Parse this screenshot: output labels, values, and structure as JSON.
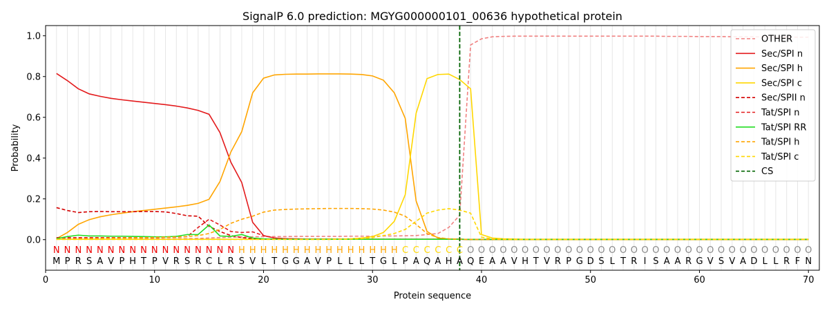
{
  "chart_data": {
    "type": "line",
    "title": "SignalP 6.0 prediction: MGYG000000101_00636 hypothetical protein",
    "xlabel": "Protein sequence",
    "ylabel": "Probability",
    "xlim": [
      0,
      71
    ],
    "ylim": [
      -0.15,
      1.05
    ],
    "xticks": [
      0,
      10,
      20,
      30,
      40,
      50,
      60,
      70
    ],
    "yticks": [
      0.0,
      0.2,
      0.4,
      0.6,
      0.8,
      1.0
    ],
    "legend_position": "top-right",
    "cleavage_site": 38,
    "sequence": [
      "M",
      "P",
      "R",
      "S",
      "A",
      "V",
      "P",
      "H",
      "T",
      "P",
      "V",
      "R",
      "S",
      "R",
      "C",
      "L",
      "R",
      "S",
      "V",
      "L",
      "T",
      "G",
      "G",
      "A",
      "V",
      "P",
      "L",
      "L",
      "L",
      "T",
      "G",
      "L",
      "P",
      "A",
      "Q",
      "A",
      "H",
      "A",
      "Q",
      "E",
      "A",
      "A",
      "V",
      "H",
      "T",
      "V",
      "R",
      "P",
      "G",
      "D",
      "S",
      "L",
      "T",
      "R",
      "I",
      "S",
      "A",
      "A",
      "R",
      "G",
      "V",
      "S",
      "V",
      "A",
      "D",
      "L",
      "L",
      "R",
      "F",
      "N"
    ],
    "labels": [
      "N",
      "N",
      "N",
      "N",
      "N",
      "N",
      "N",
      "N",
      "N",
      "N",
      "N",
      "N",
      "N",
      "N",
      "N",
      "N",
      "N",
      "H",
      "H",
      "H",
      "H",
      "H",
      "H",
      "H",
      "H",
      "H",
      "H",
      "H",
      "H",
      "H",
      "H",
      "H",
      "C",
      "C",
      "C",
      "C",
      "C",
      "C",
      "O",
      "O",
      "O",
      "O",
      "O",
      "O",
      "O",
      "O",
      "O",
      "O",
      "O",
      "O",
      "O",
      "O",
      "O",
      "O",
      "O",
      "O",
      "O",
      "O",
      "O",
      "O",
      "O",
      "O",
      "O",
      "O",
      "O",
      "O",
      "O",
      "O",
      "O",
      "O"
    ],
    "label_colors": {
      "N": "#ee0000",
      "H": "#ffa500",
      "C": "#ffd700",
      "O": "#888888"
    },
    "series": [
      {
        "name": "OTHER",
        "color": "#f08080",
        "dash": "dashed",
        "values": [
          0.005,
          0.005,
          0.005,
          0.005,
          0.005,
          0.005,
          0.005,
          0.005,
          0.005,
          0.005,
          0.005,
          0.005,
          0.005,
          0.006,
          0.008,
          0.01,
          0.012,
          0.013,
          0.014,
          0.015,
          0.015,
          0.015,
          0.016,
          0.016,
          0.016,
          0.016,
          0.016,
          0.017,
          0.017,
          0.017,
          0.018,
          0.018,
          0.019,
          0.02,
          0.025,
          0.03,
          0.06,
          0.12,
          0.955,
          0.985,
          0.995,
          0.997,
          0.998,
          0.998,
          0.998,
          0.998,
          0.998,
          0.998,
          0.998,
          0.998,
          0.998,
          0.998,
          0.998,
          0.998,
          0.998,
          0.998,
          0.997,
          0.997,
          0.997,
          0.996,
          0.996,
          0.996,
          0.995,
          0.995,
          0.995,
          0.994,
          0.994,
          0.994,
          0.993,
          0.993
        ]
      },
      {
        "name": "Sec/SPI n",
        "color": "#e31a1c",
        "dash": "solid",
        "values": [
          0.815,
          0.78,
          0.74,
          0.715,
          0.703,
          0.693,
          0.686,
          0.68,
          0.674,
          0.668,
          0.662,
          0.655,
          0.646,
          0.634,
          0.615,
          0.525,
          0.38,
          0.28,
          0.085,
          0.02,
          0.008,
          0.005,
          0.004,
          0.003,
          0.003,
          0.003,
          0.002,
          0.002,
          0.002,
          0.002,
          0.002,
          0.002,
          0.002,
          0.002,
          0.002,
          0.002,
          0.002,
          0.002,
          0.001,
          0.001,
          0.001,
          0.001,
          0.001,
          0.001,
          0.001,
          0.001,
          0.001,
          0.001,
          0.001,
          0.001,
          0.001,
          0.001,
          0.001,
          0.001,
          0.001,
          0.001,
          0.001,
          0.001,
          0.001,
          0.001,
          0.001,
          0.001,
          0.001,
          0.001,
          0.001,
          0.001,
          0.001,
          0.001,
          0.001,
          0.001
        ]
      },
      {
        "name": "Sec/SPI h",
        "color": "#ffa500",
        "dash": "solid",
        "values": [
          0.005,
          0.035,
          0.075,
          0.098,
          0.112,
          0.122,
          0.13,
          0.137,
          0.143,
          0.149,
          0.155,
          0.161,
          0.168,
          0.178,
          0.198,
          0.285,
          0.43,
          0.53,
          0.72,
          0.792,
          0.808,
          0.811,
          0.812,
          0.812,
          0.813,
          0.813,
          0.813,
          0.812,
          0.81,
          0.803,
          0.782,
          0.72,
          0.595,
          0.19,
          0.04,
          0.008,
          0.003,
          0.002,
          0.001,
          0.001,
          0.001,
          0.001,
          0.001,
          0.001,
          0.001,
          0.001,
          0.001,
          0.001,
          0.001,
          0.001,
          0.001,
          0.001,
          0.001,
          0.001,
          0.001,
          0.001,
          0.001,
          0.001,
          0.001,
          0.001,
          0.001,
          0.001,
          0.001,
          0.001,
          0.001,
          0.001,
          0.001,
          0.001,
          0.001,
          0.001
        ]
      },
      {
        "name": "Sec/SPI c",
        "color": "#ffd700",
        "dash": "solid",
        "values": [
          0.002,
          0.002,
          0.002,
          0.002,
          0.002,
          0.002,
          0.002,
          0.002,
          0.002,
          0.002,
          0.002,
          0.002,
          0.002,
          0.002,
          0.002,
          0.002,
          0.002,
          0.002,
          0.002,
          0.002,
          0.002,
          0.002,
          0.002,
          0.002,
          0.002,
          0.003,
          0.003,
          0.004,
          0.008,
          0.015,
          0.035,
          0.09,
          0.22,
          0.62,
          0.79,
          0.81,
          0.812,
          0.785,
          0.74,
          0.025,
          0.008,
          0.004,
          0.003,
          0.002,
          0.002,
          0.002,
          0.002,
          0.002,
          0.002,
          0.002,
          0.002,
          0.002,
          0.002,
          0.002,
          0.002,
          0.002,
          0.002,
          0.002,
          0.002,
          0.002,
          0.002,
          0.002,
          0.002,
          0.002,
          0.002,
          0.002,
          0.002,
          0.002,
          0.002,
          0.002
        ]
      },
      {
        "name": "Sec/SPII n",
        "color": "#d40000",
        "dash": "dashed",
        "values": [
          0.157,
          0.143,
          0.133,
          0.137,
          0.138,
          0.137,
          0.137,
          0.137,
          0.138,
          0.138,
          0.136,
          0.128,
          0.117,
          0.115,
          0.065,
          0.04,
          0.02,
          0.01,
          0.005,
          0.003,
          0.002,
          0.002,
          0.002,
          0.002,
          0.002,
          0.002,
          0.002,
          0.002,
          0.002,
          0.002,
          0.002,
          0.002,
          0.002,
          0.002,
          0.002,
          0.002,
          0.002,
          0.002,
          0.001,
          0.001,
          0.001,
          0.001,
          0.001,
          0.001,
          0.001,
          0.001,
          0.001,
          0.001,
          0.001,
          0.001,
          0.001,
          0.001,
          0.001,
          0.001,
          0.001,
          0.001,
          0.001,
          0.001,
          0.001,
          0.001,
          0.001,
          0.001,
          0.001,
          0.001,
          0.001,
          0.001,
          0.001,
          0.001,
          0.001,
          0.001
        ]
      },
      {
        "name": "Tat/SPI n",
        "color": "#e31a1c",
        "dash": "dashed",
        "values": [
          0.01,
          0.01,
          0.01,
          0.01,
          0.01,
          0.01,
          0.01,
          0.01,
          0.01,
          0.01,
          0.012,
          0.012,
          0.015,
          0.06,
          0.1,
          0.072,
          0.04,
          0.035,
          0.038,
          0.02,
          0.008,
          0.005,
          0.003,
          0.002,
          0.002,
          0.002,
          0.002,
          0.002,
          0.002,
          0.002,
          0.002,
          0.002,
          0.002,
          0.002,
          0.002,
          0.002,
          0.002,
          0.002,
          0.001,
          0.001,
          0.001,
          0.001,
          0.001,
          0.001,
          0.001,
          0.001,
          0.001,
          0.001,
          0.001,
          0.001,
          0.001,
          0.001,
          0.001,
          0.001,
          0.001,
          0.001,
          0.001,
          0.001,
          0.001,
          0.001,
          0.001,
          0.001,
          0.001,
          0.001,
          0.001,
          0.001,
          0.001,
          0.001,
          0.001,
          0.001
        ]
      },
      {
        "name": "Tat/SPI RR",
        "color": "#22dd22",
        "dash": "solid",
        "values": [
          0.005,
          0.015,
          0.022,
          0.018,
          0.018,
          0.017,
          0.017,
          0.016,
          0.015,
          0.014,
          0.014,
          0.016,
          0.025,
          0.025,
          0.072,
          0.018,
          0.016,
          0.025,
          0.008,
          0.004,
          0.003,
          0.002,
          0.002,
          0.002,
          0.002,
          0.002,
          0.002,
          0.002,
          0.002,
          0.002,
          0.002,
          0.002,
          0.002,
          0.002,
          0.002,
          0.002,
          0.002,
          0.002,
          0.001,
          0.001,
          0.001,
          0.001,
          0.001,
          0.001,
          0.001,
          0.001,
          0.001,
          0.001,
          0.001,
          0.001,
          0.001,
          0.001,
          0.001,
          0.001,
          0.001,
          0.001,
          0.001,
          0.001,
          0.001,
          0.001,
          0.001,
          0.001,
          0.001,
          0.001,
          0.001,
          0.001,
          0.001,
          0.001,
          0.001,
          0.001
        ]
      },
      {
        "name": "Tat/SPI h",
        "color": "#ffa500",
        "dash": "dashed",
        "values": [
          0.002,
          0.003,
          0.004,
          0.005,
          0.006,
          0.007,
          0.008,
          0.009,
          0.01,
          0.011,
          0.012,
          0.013,
          0.015,
          0.02,
          0.03,
          0.05,
          0.08,
          0.1,
          0.115,
          0.135,
          0.145,
          0.148,
          0.15,
          0.151,
          0.152,
          0.153,
          0.153,
          0.153,
          0.152,
          0.15,
          0.145,
          0.135,
          0.115,
          0.075,
          0.03,
          0.01,
          0.004,
          0.002,
          0.001,
          0.001,
          0.001,
          0.001,
          0.001,
          0.001,
          0.001,
          0.001,
          0.001,
          0.001,
          0.001,
          0.001,
          0.001,
          0.001,
          0.001,
          0.001,
          0.001,
          0.001,
          0.001,
          0.001,
          0.001,
          0.001,
          0.001,
          0.001,
          0.001,
          0.001,
          0.001,
          0.001,
          0.001,
          0.001,
          0.001,
          0.001
        ]
      },
      {
        "name": "Tat/SPI c",
        "color": "#ffd700",
        "dash": "dashed",
        "values": [
          0.001,
          0.001,
          0.001,
          0.001,
          0.001,
          0.001,
          0.001,
          0.001,
          0.001,
          0.001,
          0.001,
          0.001,
          0.001,
          0.001,
          0.001,
          0.001,
          0.001,
          0.001,
          0.001,
          0.001,
          0.001,
          0.001,
          0.001,
          0.001,
          0.001,
          0.001,
          0.002,
          0.003,
          0.005,
          0.01,
          0.02,
          0.03,
          0.05,
          0.09,
          0.13,
          0.145,
          0.152,
          0.145,
          0.13,
          0.012,
          0.004,
          0.002,
          0.001,
          0.001,
          0.001,
          0.001,
          0.001,
          0.001,
          0.001,
          0.001,
          0.001,
          0.001,
          0.001,
          0.001,
          0.001,
          0.001,
          0.001,
          0.001,
          0.001,
          0.001,
          0.001,
          0.001,
          0.001,
          0.001,
          0.001,
          0.001,
          0.001,
          0.001,
          0.001,
          0.001
        ]
      },
      {
        "name": "CS",
        "color": "#006400",
        "dash": "dashed",
        "vertical_at": 38
      }
    ]
  }
}
